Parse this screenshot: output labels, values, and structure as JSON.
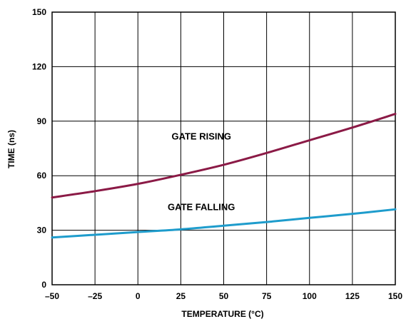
{
  "chart_data": {
    "type": "line",
    "title": "",
    "xlabel": "TEMPERATURE (°C)",
    "ylabel": "TIME (ns)",
    "xlim": [
      -50,
      150
    ],
    "ylim": [
      0,
      150
    ],
    "grid": true,
    "x_ticks": [
      {
        "value": -50,
        "label": "–50"
      },
      {
        "value": -25,
        "label": "–25"
      },
      {
        "value": 0,
        "label": "0"
      },
      {
        "value": 25,
        "label": "25"
      },
      {
        "value": 50,
        "label": "50"
      },
      {
        "value": 75,
        "label": "75"
      },
      {
        "value": 100,
        "label": "100"
      },
      {
        "value": 125,
        "label": "125"
      },
      {
        "value": 150,
        "label": "150"
      }
    ],
    "y_ticks": [
      {
        "value": 0,
        "label": "0"
      },
      {
        "value": 30,
        "label": "30"
      },
      {
        "value": 60,
        "label": "60"
      },
      {
        "value": 90,
        "label": "90"
      },
      {
        "value": 120,
        "label": "120"
      },
      {
        "value": 150,
        "label": "150"
      }
    ],
    "x": [
      -50,
      -25,
      0,
      25,
      50,
      75,
      100,
      125,
      150
    ],
    "series": [
      {
        "name": "GATE RISING",
        "color": "#8b1a46",
        "values": [
          48,
          51.5,
          55.5,
          60.5,
          66,
          72.5,
          79.5,
          86.5,
          94
        ],
        "label_at": {
          "x": 37,
          "y": 80
        }
      },
      {
        "name": "GATE FALLING",
        "color": "#1e9ccc",
        "values": [
          26,
          27.5,
          29,
          30.5,
          32.5,
          34.5,
          36.8,
          39,
          41.5
        ],
        "label_at": {
          "x": 37,
          "y": 41
        }
      }
    ]
  }
}
